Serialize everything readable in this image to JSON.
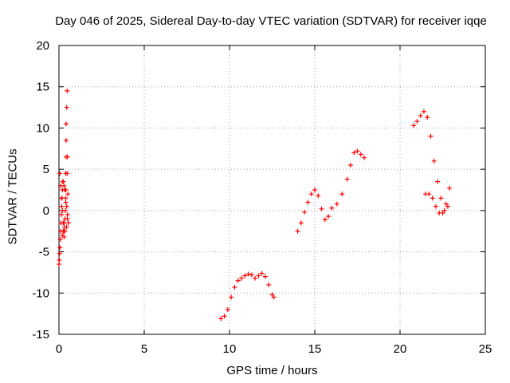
{
  "chart_data": {
    "type": "scatter",
    "title": "Day 046 of 2025, Sidereal Day-to-day VTEC variation (SDTVAR) for receiver iqqe",
    "xlabel": "GPS time / hours",
    "ylabel": "SDTVAR / TECUs",
    "xlim": [
      0,
      25
    ],
    "ylim": [
      -15,
      20
    ],
    "xticks": [
      0,
      5,
      10,
      15,
      20,
      25
    ],
    "yticks": [
      -15,
      -10,
      -5,
      0,
      5,
      10,
      15,
      20
    ],
    "grid": true,
    "marker": "+",
    "color": "#ff0000",
    "series": [
      {
        "name": "SDTVAR",
        "x": [
          0.0,
          0.02,
          0.04,
          0.06,
          0.08,
          0.1,
          0.12,
          0.14,
          0.16,
          0.18,
          0.2,
          0.22,
          0.05,
          0.1,
          0.15,
          0.2,
          0.25,
          0.28,
          0.3,
          0.32,
          0.35,
          0.38,
          0.4,
          0.4,
          0.4,
          0.42,
          0.42,
          0.42,
          0.45,
          0.48,
          0.2,
          0.25,
          0.3,
          0.35,
          0.25,
          0.3,
          0.35,
          0.4,
          0.45,
          0.5,
          0.55,
          0.48,
          0.5,
          0.52,
          0.45,
          0.5,
          9.5,
          9.7,
          9.9,
          10.1,
          10.3,
          10.5,
          10.7,
          10.9,
          11.1,
          11.3,
          11.5,
          11.7,
          11.9,
          12.1,
          12.3,
          12.5,
          12.6,
          14.0,
          14.2,
          14.4,
          14.6,
          14.8,
          15.0,
          15.2,
          15.4,
          15.6,
          15.8,
          16.0,
          16.3,
          16.6,
          16.9,
          17.1,
          17.3,
          17.5,
          17.7,
          17.9,
          20.8,
          21.0,
          21.2,
          21.4,
          21.6,
          21.8,
          22.0,
          22.2,
          22.4,
          22.6,
          22.8,
          21.5,
          21.7,
          21.9,
          22.1,
          22.3,
          22.5,
          22.7,
          22.9
        ],
        "y": [
          -6.5,
          -6,
          -5.2,
          -4.5,
          -3.5,
          -2.5,
          -1.5,
          -0.5,
          0.5,
          1.5,
          2.5,
          3.5,
          4.5,
          3,
          1.5,
          0,
          -1.5,
          -2.5,
          -3.2,
          -2,
          -1,
          0,
          1,
          2.5,
          4.5,
          6.5,
          8.5,
          10.5,
          12.5,
          14.5,
          -3,
          -2.5,
          -1.5,
          -2.5,
          3.5,
          3,
          2.5,
          1.5,
          0.5,
          -0.5,
          -1.5,
          4.5,
          6.5,
          2,
          -2,
          -1,
          -13.1,
          -12.8,
          -12,
          -10.5,
          -9.3,
          -8.5,
          -8.2,
          -7.9,
          -7.7,
          -7.8,
          -8.2,
          -7.9,
          -7.6,
          -8,
          -9,
          -10.2,
          -10.5,
          -2.5,
          -1.5,
          -0.2,
          1,
          2,
          2.5,
          1.8,
          0.2,
          -1.1,
          -0.7,
          0.3,
          0.8,
          2,
          3.8,
          5.5,
          7,
          7.2,
          6.8,
          6.4,
          10.3,
          10.8,
          11.5,
          12,
          11.3,
          9,
          6,
          3.5,
          1.5,
          0,
          0.5,
          2,
          2,
          1.5,
          0.5,
          -0.3,
          -0.3,
          0.8,
          2.7
        ]
      }
    ]
  }
}
